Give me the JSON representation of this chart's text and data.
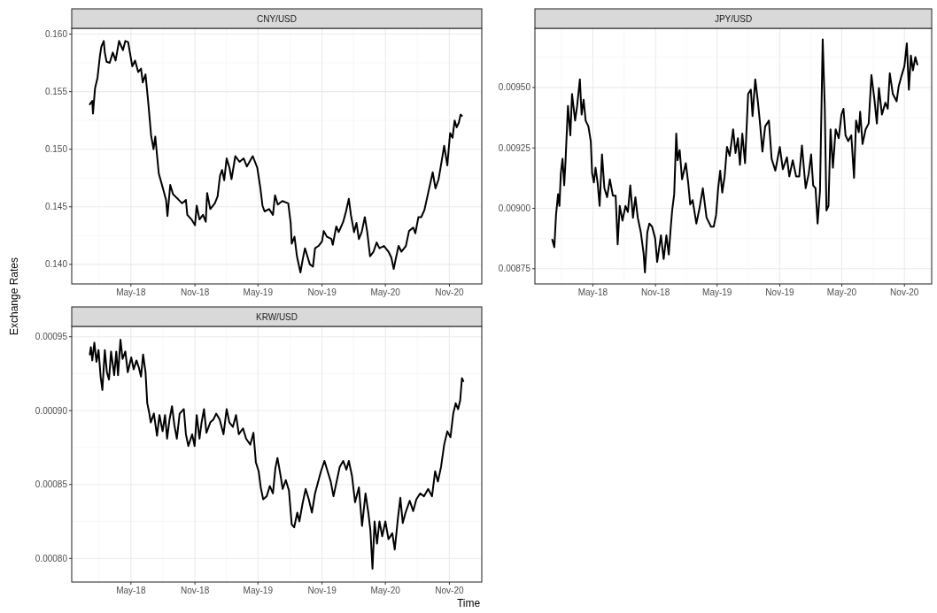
{
  "chart_data": [
    {
      "type": "line",
      "title": "CNY/USD",
      "color": "#000000",
      "grid": true,
      "x": [
        "2018-01-03",
        "2018-01-10",
        "2018-01-12",
        "2018-01-18",
        "2018-01-25",
        "2018-02-01",
        "2018-02-05",
        "2018-02-12",
        "2018-02-15",
        "2018-02-20",
        "2018-03-01",
        "2018-03-10",
        "2018-03-18",
        "2018-03-28",
        "2018-04-08",
        "2018-04-15",
        "2018-04-23",
        "2018-05-01",
        "2018-05-05",
        "2018-05-13",
        "2018-05-22",
        "2018-05-30",
        "2018-06-04",
        "2018-06-12",
        "2018-06-20",
        "2018-06-28",
        "2018-07-05",
        "2018-07-10",
        "2018-07-20",
        "2018-08-01",
        "2018-08-10",
        "2018-08-14",
        "2018-08-22",
        "2018-08-30",
        "2018-09-12",
        "2018-09-25",
        "2018-10-06",
        "2018-10-10",
        "2018-10-22",
        "2018-11-01",
        "2018-11-06",
        "2018-11-14",
        "2018-11-24",
        "2018-12-02",
        "2018-12-06",
        "2018-12-15",
        "2018-12-28",
        "2019-01-05",
        "2019-01-12",
        "2019-01-18",
        "2019-01-24",
        "2019-01-31",
        "2019-02-08",
        "2019-02-14",
        "2019-02-25",
        "2019-03-09",
        "2019-03-21",
        "2019-03-30",
        "2019-04-16",
        "2019-04-29",
        "2019-05-08",
        "2019-05-14",
        "2019-05-20",
        "2019-06-02",
        "2019-06-13",
        "2019-06-19",
        "2019-06-27",
        "2019-07-10",
        "2019-07-27",
        "2019-08-03",
        "2019-08-06",
        "2019-08-14",
        "2019-08-21",
        "2019-08-31",
        "2019-09-07",
        "2019-09-13",
        "2019-09-20",
        "2019-09-27",
        "2019-10-06",
        "2019-10-12",
        "2019-10-22",
        "2019-11-01",
        "2019-11-06",
        "2019-11-15",
        "2019-11-28",
        "2019-12-02",
        "2019-12-12",
        "2019-12-19",
        "2020-01-01",
        "2020-01-09",
        "2020-01-17",
        "2020-01-23",
        "2020-02-01",
        "2020-02-08",
        "2020-02-15",
        "2020-02-23",
        "2020-03-03",
        "2020-03-10",
        "2020-03-18",
        "2020-03-28",
        "2020-04-06",
        "2020-04-14",
        "2020-04-27",
        "2020-05-10",
        "2020-05-18",
        "2020-05-25",
        "2020-05-31",
        "2020-06-08",
        "2020-06-16",
        "2020-06-29",
        "2020-07-08",
        "2020-07-20",
        "2020-07-26",
        "2020-08-04",
        "2020-08-12",
        "2020-08-21",
        "2020-09-01",
        "2020-09-14",
        "2020-09-22",
        "2020-10-01",
        "2020-10-11",
        "2020-10-17",
        "2020-10-26",
        "2020-11-03",
        "2020-11-10",
        "2020-11-16",
        "2020-11-22",
        "2020-11-28",
        "2020-12-03",
        "2020-12-07"
      ],
      "values": [
        0.1539,
        0.1542,
        0.1531,
        0.1553,
        0.1562,
        0.1581,
        0.1589,
        0.1594,
        0.1584,
        0.1576,
        0.1575,
        0.1584,
        0.1577,
        0.1594,
        0.1586,
        0.1594,
        0.1593,
        0.1579,
        0.1572,
        0.1577,
        0.1567,
        0.157,
        0.1558,
        0.1565,
        0.154,
        0.1512,
        0.15,
        0.1511,
        0.1479,
        0.1466,
        0.1456,
        0.1442,
        0.1469,
        0.1461,
        0.1457,
        0.1453,
        0.1456,
        0.1443,
        0.1439,
        0.1434,
        0.1451,
        0.1439,
        0.1443,
        0.1437,
        0.1462,
        0.1448,
        0.1453,
        0.1459,
        0.1477,
        0.1482,
        0.1473,
        0.1492,
        0.1484,
        0.1474,
        0.1494,
        0.1489,
        0.1492,
        0.1485,
        0.1494,
        0.1484,
        0.1466,
        0.1451,
        0.1446,
        0.1448,
        0.1443,
        0.146,
        0.1452,
        0.1455,
        0.1453,
        0.1436,
        0.1418,
        0.1424,
        0.1407,
        0.1393,
        0.1405,
        0.1414,
        0.1407,
        0.14,
        0.1398,
        0.1414,
        0.1416,
        0.142,
        0.1429,
        0.1424,
        0.1422,
        0.1417,
        0.1433,
        0.1428,
        0.1437,
        0.1446,
        0.1457,
        0.1443,
        0.1428,
        0.1436,
        0.1422,
        0.1428,
        0.1441,
        0.1428,
        0.1407,
        0.1411,
        0.1419,
        0.1414,
        0.1416,
        0.1411,
        0.1406,
        0.1396,
        0.1405,
        0.1416,
        0.1411,
        0.1416,
        0.1429,
        0.1432,
        0.1427,
        0.1441,
        0.1441,
        0.1447,
        0.1462,
        0.148,
        0.1466,
        0.1474,
        0.1492,
        0.1503,
        0.1486,
        0.1514,
        0.151,
        0.1525,
        0.1519,
        0.1523,
        0.153,
        0.1529
      ],
      "xlim": [
        "2017-11-12",
        "2021-02-02"
      ],
      "xticks": [
        {
          "value": "2018-05-01",
          "label": "May-18"
        },
        {
          "value": "2018-11-01",
          "label": "Nov-18"
        },
        {
          "value": "2019-05-01",
          "label": "May-19"
        },
        {
          "value": "2019-11-01",
          "label": "Nov-19"
        },
        {
          "value": "2020-05-01",
          "label": "May-20"
        },
        {
          "value": "2020-11-01",
          "label": "Nov-20"
        }
      ],
      "ylim": [
        0.1383,
        0.1605
      ],
      "yticks": [
        {
          "value": 0.14,
          "label": "0.140"
        },
        0.145,
        {
          "value": 0.15,
          "label": "0.150"
        },
        0.155,
        {
          "value": 0.16,
          "label": "0.160"
        }
      ]
    },
    {
      "type": "line",
      "title": "JPY/USD",
      "color": "#000000",
      "grid": true,
      "x": [
        "2018-01-02",
        "2018-01-08",
        "2018-01-13",
        "2018-01-19",
        "2018-01-23",
        "2018-01-27",
        "2018-02-01",
        "2018-02-06",
        "2018-02-10",
        "2018-02-17",
        "2018-02-24",
        "2018-03-01",
        "2018-03-10",
        "2018-03-16",
        "2018-03-24",
        "2018-03-29",
        "2018-04-04",
        "2018-04-10",
        "2018-04-18",
        "2018-04-25",
        "2018-04-29",
        "2018-05-04",
        "2018-05-09",
        "2018-05-15",
        "2018-05-21",
        "2018-05-28",
        "2018-06-04",
        "2018-06-12",
        "2018-06-20",
        "2018-06-29",
        "2018-07-07",
        "2018-07-13",
        "2018-07-19",
        "2018-07-27",
        "2018-08-05",
        "2018-08-12",
        "2018-08-19",
        "2018-08-27",
        "2018-09-03",
        "2018-09-10",
        "2018-09-19",
        "2018-09-27",
        "2018-10-01",
        "2018-10-08",
        "2018-10-14",
        "2018-10-22",
        "2018-10-31",
        "2018-11-06",
        "2018-11-17",
        "2018-11-25",
        "2018-12-03",
        "2018-12-10",
        "2018-12-16",
        "2018-12-20",
        "2018-12-26",
        "2019-01-01",
        "2019-01-05",
        "2019-01-11",
        "2019-01-18",
        "2019-01-29",
        "2019-02-05",
        "2019-02-11",
        "2019-02-18",
        "2019-03-01",
        "2019-03-10",
        "2019-03-20",
        "2019-03-31",
        "2019-04-13",
        "2019-04-21",
        "2019-04-28",
        "2019-05-04",
        "2019-05-10",
        "2019-05-16",
        "2019-05-23",
        "2019-05-30",
        "2019-06-07",
        "2019-06-17",
        "2019-06-24",
        "2019-07-01",
        "2019-07-07",
        "2019-07-14",
        "2019-07-22",
        "2019-07-31",
        "2019-08-08",
        "2019-08-13",
        "2019-08-21",
        "2019-08-29",
        "2019-09-04",
        "2019-09-11",
        "2019-09-19",
        "2019-09-30",
        "2019-10-08",
        "2019-10-19",
        "2019-11-01",
        "2019-11-10",
        "2019-11-22",
        "2019-11-29",
        "2019-12-09",
        "2019-12-19",
        "2019-12-28",
        "2020-01-05",
        "2020-01-16",
        "2020-01-25",
        "2020-02-01",
        "2020-02-07",
        "2020-02-14",
        "2020-02-20",
        "2020-02-27",
        "2020-03-06",
        "2020-03-12",
        "2020-03-17",
        "2020-03-23",
        "2020-03-29",
        "2020-04-05",
        "2020-04-13",
        "2020-04-22",
        "2020-04-30",
        "2020-05-06",
        "2020-05-12",
        "2020-05-20",
        "2020-05-29",
        "2020-06-06",
        "2020-06-12",
        "2020-06-20",
        "2020-06-24",
        "2020-07-01",
        "2020-07-10",
        "2020-07-19",
        "2020-07-27",
        "2020-08-05",
        "2020-08-12",
        "2020-08-18",
        "2020-08-27",
        "2020-09-06",
        "2020-09-13",
        "2020-09-19",
        "2020-09-28",
        "2020-10-09",
        "2020-10-15",
        "2020-10-23",
        "2020-11-01",
        "2020-11-08",
        "2020-11-14",
        "2020-11-20",
        "2020-11-26",
        "2020-12-03",
        "2020-12-09"
      ],
      "values": [
        0.00887,
        0.008839,
        0.008973,
        0.009059,
        0.00901,
        0.009144,
        0.009205,
        0.009095,
        0.009199,
        0.009424,
        0.009302,
        0.009473,
        0.009363,
        0.009424,
        0.009534,
        0.009388,
        0.009449,
        0.009363,
        0.009339,
        0.009278,
        0.009144,
        0.009107,
        0.009168,
        0.009107,
        0.00901,
        0.009223,
        0.009083,
        0.009046,
        0.00912,
        0.009052,
        0.009052,
        0.008851,
        0.00901,
        0.008949,
        0.00901,
        0.008985,
        0.009095,
        0.008961,
        0.009046,
        0.008961,
        0.0089,
        0.008815,
        0.008735,
        0.0089,
        0.008937,
        0.008924,
        0.008876,
        0.008778,
        0.008888,
        0.00879,
        0.008888,
        0.008809,
        0.008924,
        0.008991,
        0.009059,
        0.009309,
        0.009199,
        0.009241,
        0.00912,
        0.009187,
        0.009107,
        0.009016,
        0.009034,
        0.008937,
        0.008998,
        0.009083,
        0.008961,
        0.008924,
        0.008924,
        0.008973,
        0.009083,
        0.009156,
        0.009065,
        0.009132,
        0.009254,
        0.009217,
        0.009327,
        0.009229,
        0.00929,
        0.00918,
        0.009309,
        0.009187,
        0.009473,
        0.009491,
        0.009382,
        0.009534,
        0.009437,
        0.009351,
        0.009235,
        0.009339,
        0.009363,
        0.009205,
        0.009156,
        0.009254,
        0.009162,
        0.009211,
        0.009132,
        0.009199,
        0.009132,
        0.009132,
        0.00926,
        0.009083,
        0.009144,
        0.009223,
        0.009095,
        0.009083,
        0.008937,
        0.009071,
        0.009699,
        0.009424,
        0.008991,
        0.00901,
        0.009327,
        0.009168,
        0.009327,
        0.00929,
        0.009388,
        0.009412,
        0.009302,
        0.009278,
        0.009302,
        0.009126,
        0.009363,
        0.009315,
        0.0094,
        0.009266,
        0.009327,
        0.009351,
        0.009552,
        0.009449,
        0.009351,
        0.009498,
        0.009388,
        0.009437,
        0.009412,
        0.009559,
        0.009473,
        0.009443,
        0.009504,
        0.009546,
        0.009589,
        0.009683,
        0.009491,
        0.009632,
        0.009571,
        0.009626,
        0.009595
      ],
      "xlim": [
        "2017-11-12",
        "2021-01-20"
      ],
      "xticks": [
        {
          "value": "2018-05-01",
          "label": "May-18"
        },
        {
          "value": "2018-11-01",
          "label": "Nov-18"
        },
        {
          "value": "2019-05-01",
          "label": "May-19"
        },
        {
          "value": "2019-11-01",
          "label": "Nov-19"
        },
        {
          "value": "2020-05-01",
          "label": "May-20"
        },
        {
          "value": "2020-11-01",
          "label": "Nov-20"
        }
      ],
      "ylim": [
        0.008687,
        0.009745
      ],
      "yticks": [
        0.00875,
        {
          "value": 0.009,
          "label": "0.00900"
        },
        0.00925,
        {
          "value": 0.0095,
          "label": "0.00950"
        }
      ]
    },
    {
      "type": "line",
      "title": "KRW/USD",
      "xlabel": "Time",
      "ylabel": "Exchange Rates",
      "color": "#000000",
      "grid": true,
      "x": [
        "2018-01-03",
        "2018-01-06",
        "2018-01-10",
        "2018-01-16",
        "2018-01-22",
        "2018-01-28",
        "2018-02-03",
        "2018-02-08",
        "2018-02-15",
        "2018-02-21",
        "2018-02-27",
        "2018-03-05",
        "2018-03-14",
        "2018-03-20",
        "2018-03-25",
        "2018-04-01",
        "2018-04-07",
        "2018-04-15",
        "2018-04-22",
        "2018-05-02",
        "2018-05-09",
        "2018-05-17",
        "2018-05-24",
        "2018-05-30",
        "2018-06-05",
        "2018-06-12",
        "2018-06-17",
        "2018-06-23",
        "2018-06-27",
        "2018-07-06",
        "2018-07-15",
        "2018-07-22",
        "2018-07-31",
        "2018-08-07",
        "2018-08-13",
        "2018-08-20",
        "2018-08-27",
        "2018-09-03",
        "2018-09-10",
        "2018-09-18",
        "2018-09-30",
        "2018-10-06",
        "2018-10-13",
        "2018-10-24",
        "2018-10-31",
        "2018-11-06",
        "2018-11-14",
        "2018-11-20",
        "2018-11-27",
        "2018-12-04",
        "2018-12-15",
        "2018-12-24",
        "2019-01-01",
        "2019-01-11",
        "2019-01-22",
        "2019-01-31",
        "2019-02-08",
        "2019-02-18",
        "2019-02-27",
        "2019-03-07",
        "2019-03-19",
        "2019-03-28",
        "2019-04-09",
        "2019-04-18",
        "2019-04-25",
        "2019-05-03",
        "2019-05-09",
        "2019-05-16",
        "2019-05-26",
        "2019-06-04",
        "2019-06-13",
        "2019-06-20",
        "2019-06-26",
        "2019-07-05",
        "2019-07-11",
        "2019-07-20",
        "2019-07-29",
        "2019-08-06",
        "2019-08-13",
        "2019-08-22",
        "2019-08-28",
        "2019-09-06",
        "2019-09-15",
        "2019-09-24",
        "2019-10-03",
        "2019-10-12",
        "2019-10-21",
        "2019-10-29",
        "2019-11-08",
        "2019-11-17",
        "2019-11-26",
        "2019-12-04",
        "2019-12-13",
        "2019-12-22",
        "2020-01-01",
        "2020-01-10",
        "2020-01-17",
        "2020-01-26",
        "2020-02-04",
        "2020-02-15",
        "2020-02-24",
        "2020-03-05",
        "2020-03-13",
        "2020-03-19",
        "2020-03-25",
        "2020-03-31",
        "2020-04-07",
        "2020-04-14",
        "2020-04-22",
        "2020-05-01",
        "2020-05-10",
        "2020-05-21",
        "2020-05-28",
        "2020-06-06",
        "2020-06-13",
        "2020-06-20",
        "2020-06-28",
        "2020-07-10",
        "2020-07-20",
        "2020-07-29",
        "2020-08-09",
        "2020-08-20",
        "2020-09-01",
        "2020-09-12",
        "2020-09-21",
        "2020-09-29",
        "2020-10-08",
        "2020-10-17",
        "2020-10-26",
        "2020-11-04",
        "2020-11-12",
        "2020-11-19",
        "2020-11-26",
        "2020-12-02",
        "2020-12-07",
        "2020-12-11"
      ],
      "values": [
        0.000938,
        0.000943,
        0.000934,
        0.000946,
        0.000933,
        0.000941,
        0.000923,
        0.000914,
        0.000941,
        0.000926,
        0.000921,
        0.00094,
        0.000924,
        0.00094,
        0.000924,
        0.000948,
        0.000935,
        0.00094,
        0.000926,
        0.000936,
        0.000928,
        0.000934,
        0.000929,
        0.000923,
        0.000938,
        0.000926,
        0.000905,
        0.000898,
        0.000892,
        0.000898,
        0.000883,
        0.000897,
        0.000886,
        0.000897,
        0.000881,
        0.000894,
        0.000903,
        0.00089,
        0.000881,
        0.000898,
        0.000901,
        0.000884,
        0.000876,
        0.000884,
        0.000876,
        0.000897,
        0.000881,
        0.000892,
        0.000901,
        0.000885,
        0.000892,
        0.000894,
        0.000898,
        0.000894,
        0.000884,
        0.000901,
        0.000892,
        0.000889,
        0.000897,
        0.000884,
        0.000888,
        0.000881,
        0.000877,
        0.000885,
        0.000865,
        0.000859,
        0.000848,
        0.00084,
        0.000842,
        0.000849,
        0.000844,
        0.000861,
        0.000868,
        0.000856,
        0.000847,
        0.000853,
        0.000846,
        0.000823,
        0.000821,
        0.000831,
        0.000825,
        0.000837,
        0.000847,
        0.00084,
        0.000831,
        0.000844,
        0.000852,
        0.000859,
        0.000866,
        0.000859,
        0.000852,
        0.000842,
        0.000852,
        0.000862,
        0.000866,
        0.00086,
        0.000866,
        0.000856,
        0.000838,
        0.000848,
        0.000822,
        0.000844,
        0.000831,
        0.000819,
        0.000793,
        0.000825,
        0.00081,
        0.000825,
        0.000815,
        0.000825,
        0.000813,
        0.000817,
        0.000806,
        0.000827,
        0.000841,
        0.000824,
        0.000831,
        0.000839,
        0.000832,
        0.00084,
        0.000844,
        0.000842,
        0.000847,
        0.000842,
        0.000859,
        0.000852,
        0.000862,
        0.000877,
        0.000886,
        0.000882,
        0.000898,
        0.000905,
        0.000901,
        0.000907,
        0.000922,
        0.00092
      ],
      "xlim": [
        "2017-11-12",
        "2021-02-02"
      ],
      "xticks": [
        {
          "value": "2018-05-01",
          "label": "May-18"
        },
        {
          "value": "2018-11-01",
          "label": "Nov-18"
        },
        {
          "value": "2019-05-01",
          "label": "May-19"
        },
        {
          "value": "2019-11-01",
          "label": "Nov-19"
        },
        {
          "value": "2020-05-01",
          "label": "May-20"
        },
        {
          "value": "2020-11-01",
          "label": "Nov-20"
        }
      ],
      "ylim": [
        0.000784,
        0.000957
      ],
      "yticks": [
        {
          "value": 0.0008,
          "label": "0.00080"
        },
        0.00085,
        {
          "value": 0.0009,
          "label": "0.00090"
        },
        0.00095
      ]
    }
  ]
}
